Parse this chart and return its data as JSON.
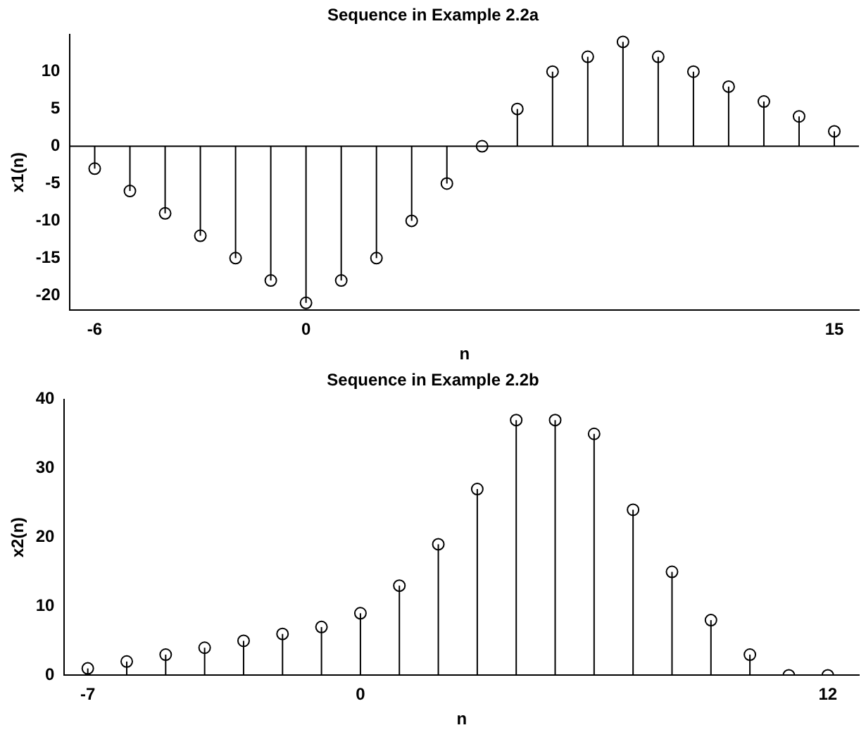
{
  "chart_data": [
    {
      "type": "lollipop",
      "title": "Sequence in Example 2.2a",
      "xlabel": "n",
      "ylabel": "x1(n)",
      "color": "#000000",
      "marker": "circle",
      "grid": false,
      "x": [
        -6,
        -5,
        -4,
        -3,
        -2,
        -1,
        0,
        1,
        2,
        3,
        4,
        5,
        6,
        7,
        8,
        9,
        10,
        11,
        12,
        13,
        14,
        15
      ],
      "values": [
        -3,
        -6,
        -9,
        -12,
        -15,
        -18,
        -21,
        -18,
        -15,
        -10,
        -5,
        0,
        5,
        10,
        12,
        14,
        12,
        10,
        8,
        6,
        4,
        2
      ],
      "xlim": [
        -6.7,
        15.7
      ],
      "xticks": [
        -6,
        0,
        15
      ],
      "ylim": [
        -22,
        15
      ],
      "yticks": [
        -20,
        -15,
        -10,
        -5,
        0,
        5,
        10
      ],
      "ref_lines": [
        {
          "axis": "y",
          "value": 0
        }
      ]
    },
    {
      "type": "lollipop",
      "title": "Sequence in Example 2.2b",
      "xlabel": "n",
      "ylabel": "x2(n)",
      "color": "#000000",
      "marker": "circle",
      "grid": false,
      "x": [
        -7,
        -6,
        -5,
        -4,
        -3,
        -2,
        -1,
        0,
        1,
        2,
        3,
        4,
        5,
        6,
        7,
        8,
        9,
        10,
        11,
        12
      ],
      "values": [
        1,
        2,
        3,
        4,
        5,
        6,
        7,
        9,
        13,
        19,
        27,
        37,
        37,
        35,
        24,
        15,
        8,
        3,
        0,
        0
      ],
      "xlim": [
        -7.6,
        12.8
      ],
      "xticks": [
        -7,
        0,
        12
      ],
      "ylim": [
        0,
        40
      ],
      "yticks": [
        0,
        10,
        20,
        30,
        40
      ]
    }
  ]
}
